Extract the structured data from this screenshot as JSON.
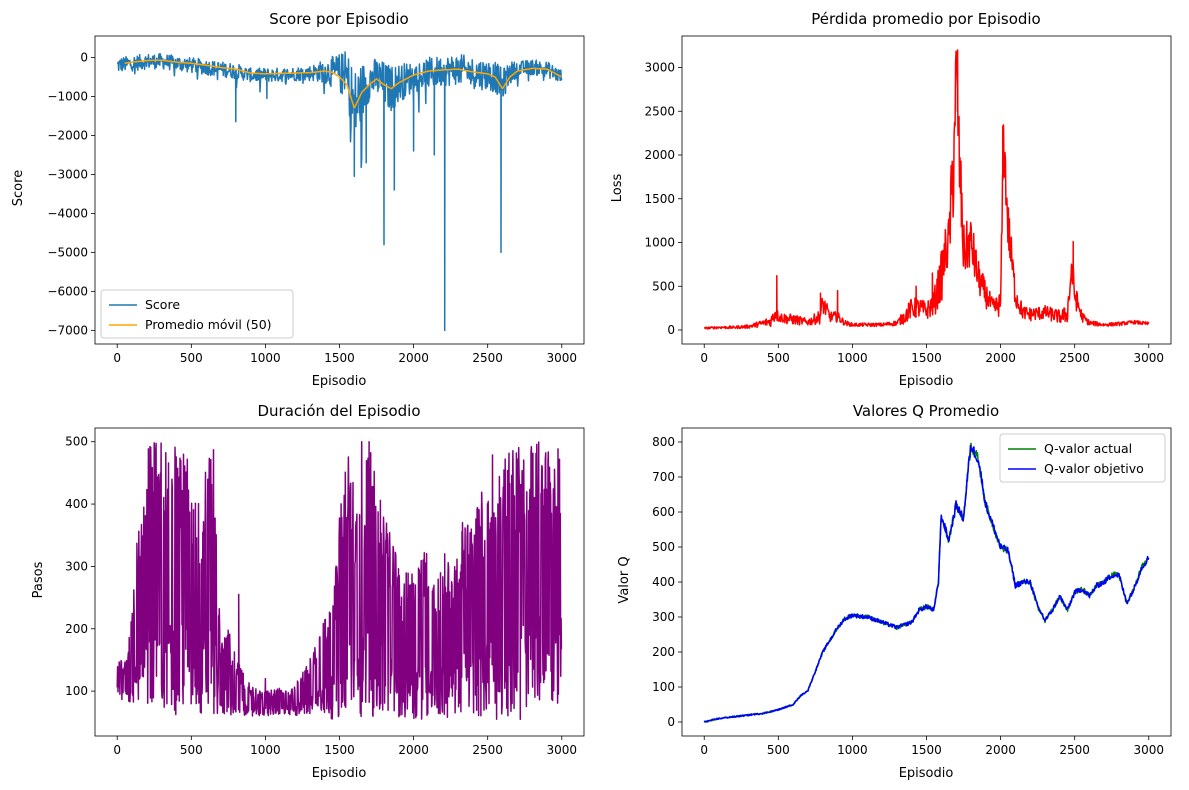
{
  "figure": {
    "background": "#ffffff"
  },
  "chart_data": [
    {
      "type": "line",
      "title": "Score por Episodio",
      "xlabel": "Episodio",
      "ylabel": "Score",
      "xlim": [
        -150,
        3150
      ],
      "ylim": [
        -7350,
        550
      ],
      "xticks": [
        0,
        500,
        1000,
        1500,
        2000,
        2500,
        3000
      ],
      "yticks": [
        0,
        -1000,
        -2000,
        -3000,
        -4000,
        -5000,
        -6000,
        -7000
      ],
      "legend": "lower-left",
      "series": [
        {
          "name": "Score",
          "color": "#1f77b4",
          "style": "noisy",
          "x": [
            0,
            100,
            200,
            300,
            400,
            500,
            600,
            700,
            800,
            900,
            1000,
            1100,
            1200,
            1300,
            1400,
            1500,
            1550,
            1600,
            1650,
            1700,
            1750,
            1800,
            1850,
            1900,
            2000,
            2100,
            2200,
            2300,
            2400,
            2500,
            2550,
            2600,
            2650,
            2700,
            2800,
            2900,
            3000
          ],
          "y": [
            -200,
            -150,
            -100,
            -100,
            -150,
            -200,
            -250,
            -300,
            -350,
            -450,
            -450,
            -450,
            -420,
            -400,
            -350,
            -400,
            -500,
            -1300,
            -900,
            -600,
            -500,
            -700,
            -800,
            -650,
            -500,
            -400,
            -350,
            -300,
            -400,
            -450,
            -500,
            -700,
            -400,
            -300,
            -250,
            -300,
            -500
          ],
          "amp": [
            200,
            200,
            200,
            200,
            200,
            200,
            200,
            200,
            200,
            180,
            180,
            180,
            180,
            200,
            300,
            500,
            700,
            1000,
            800,
            500,
            500,
            600,
            600,
            500,
            400,
            400,
            400,
            400,
            400,
            400,
            400,
            400,
            300,
            200,
            200,
            200,
            200
          ],
          "spikes": [
            [
              800,
              -1650
            ],
            [
              1600,
              -3050
            ],
            [
              1800,
              -4800
            ],
            [
              1870,
              -3400
            ],
            [
              2000,
              -2400
            ],
            [
              2210,
              -7000
            ],
            [
              2590,
              -5000
            ],
            [
              1010,
              -1050
            ],
            [
              1680,
              -2700
            ],
            [
              2140,
              -2500
            ]
          ]
        },
        {
          "name": "Promedio móvil (50)",
          "color": "#ffa500",
          "x": [
            50,
            100,
            200,
            300,
            400,
            500,
            600,
            700,
            800,
            900,
            1000,
            1100,
            1200,
            1300,
            1400,
            1450,
            1500,
            1550,
            1600,
            1650,
            1700,
            1750,
            1800,
            1850,
            1900,
            1950,
            2000,
            2050,
            2100,
            2200,
            2300,
            2400,
            2500,
            2550,
            2600,
            2650,
            2700,
            2800,
            2900,
            3000
          ],
          "y": [
            -150,
            -120,
            -80,
            -70,
            -120,
            -150,
            -200,
            -260,
            -300,
            -400,
            -420,
            -410,
            -400,
            -390,
            -350,
            -380,
            -500,
            -700,
            -1300,
            -900,
            -700,
            -550,
            -700,
            -800,
            -650,
            -550,
            -450,
            -400,
            -350,
            -320,
            -300,
            -370,
            -420,
            -500,
            -800,
            -500,
            -350,
            -280,
            -300,
            -500
          ]
        }
      ]
    },
    {
      "type": "line",
      "title": "Pérdida promedio por Episodio",
      "xlabel": "Episodio",
      "ylabel": "Loss",
      "xlim": [
        -150,
        3150
      ],
      "ylim": [
        -160,
        3360
      ],
      "xticks": [
        0,
        500,
        1000,
        1500,
        2000,
        2500,
        3000
      ],
      "yticks": [
        0,
        500,
        1000,
        1500,
        2000,
        2500,
        3000
      ],
      "series": [
        {
          "name": "Loss",
          "color": "#ff0000",
          "style": "noisy",
          "x": [
            0,
            100,
            200,
            300,
            400,
            450,
            480,
            500,
            550,
            600,
            700,
            780,
            800,
            850,
            900,
            950,
            1000,
            1100,
            1200,
            1300,
            1350,
            1400,
            1450,
            1500,
            1550,
            1600,
            1630,
            1650,
            1680,
            1700,
            1720,
            1750,
            1800,
            1850,
            1900,
            1950,
            2000,
            2020,
            2050,
            2100,
            2150,
            2200,
            2300,
            2400,
            2450,
            2480,
            2500,
            2550,
            2600,
            2700,
            2800,
            2900,
            3000
          ],
          "y": [
            20,
            30,
            30,
            40,
            80,
            100,
            200,
            150,
            130,
            120,
            90,
            150,
            300,
            150,
            150,
            80,
            60,
            60,
            60,
            80,
            150,
            250,
            250,
            220,
            300,
            600,
            900,
            1000,
            1800,
            3000,
            2000,
            900,
            1000,
            600,
            400,
            250,
            300,
            2200,
            1200,
            400,
            200,
            180,
            200,
            150,
            180,
            700,
            400,
            150,
            80,
            60,
            70,
            90,
            70
          ],
          "amp": [
            10,
            15,
            15,
            20,
            40,
            60,
            100,
            60,
            60,
            60,
            40,
            80,
            120,
            60,
            60,
            30,
            20,
            20,
            20,
            30,
            80,
            120,
            120,
            100,
            150,
            300,
            300,
            300,
            600,
            400,
            500,
            300,
            300,
            200,
            150,
            100,
            150,
            300,
            300,
            150,
            80,
            80,
            80,
            80,
            100,
            250,
            150,
            60,
            30,
            20,
            20,
            20,
            20
          ],
          "spikes": [
            [
              490,
              620
            ],
            [
              785,
              420
            ],
            [
              900,
              450
            ],
            [
              1430,
              500
            ],
            [
              1710,
              3200
            ],
            [
              2015,
              2330
            ],
            [
              2490,
              1010
            ],
            [
              1540,
              650
            ]
          ]
        }
      ]
    },
    {
      "type": "line",
      "title": "Duración del Episodio",
      "xlabel": "Episodio",
      "ylabel": "Pasos",
      "xlim": [
        -150,
        3150
      ],
      "ylim": [
        28,
        522
      ],
      "xticks": [
        0,
        500,
        1000,
        1500,
        2000,
        2500,
        3000
      ],
      "yticks": [
        100,
        200,
        300,
        400,
        500
      ],
      "series": [
        {
          "name": "Pasos",
          "color": "#800080",
          "style": "band",
          "x": [
            0,
            50,
            100,
            150,
            200,
            250,
            300,
            350,
            400,
            450,
            500,
            550,
            600,
            650,
            700,
            750,
            800,
            850,
            900,
            1000,
            1100,
            1200,
            1300,
            1400,
            1450,
            1500,
            1550,
            1600,
            1650,
            1700,
            1750,
            1800,
            1850,
            1900,
            1950,
            2000,
            2050,
            2100,
            2150,
            2200,
            2250,
            2300,
            2350,
            2400,
            2450,
            2500,
            2550,
            2600,
            2650,
            2700,
            2750,
            2800,
            2850,
            2900,
            2950,
            3000
          ],
          "lo": [
            90,
            80,
            80,
            75,
            70,
            60,
            60,
            60,
            60,
            60,
            60,
            60,
            60,
            60,
            60,
            60,
            60,
            60,
            60,
            60,
            60,
            60,
            60,
            60,
            55,
            55,
            55,
            55,
            55,
            55,
            55,
            55,
            55,
            55,
            55,
            55,
            55,
            55,
            55,
            55,
            55,
            60,
            60,
            60,
            60,
            60,
            60,
            60,
            60,
            70,
            70,
            75,
            80,
            80,
            80,
            80
          ],
          "hi": [
            150,
            150,
            220,
            400,
            500,
            500,
            500,
            500,
            500,
            500,
            450,
            400,
            500,
            500,
            200,
            200,
            160,
            130,
            110,
            100,
            105,
            110,
            150,
            220,
            250,
            380,
            500,
            430,
            420,
            500,
            440,
            400,
            360,
            300,
            290,
            300,
            330,
            320,
            280,
            300,
            320,
            340,
            370,
            380,
            420,
            450,
            500,
            500,
            500,
            500,
            500,
            500,
            500,
            500,
            500,
            500
          ],
          "spikes": [
            [
              820,
              255
            ],
            [
              2210,
              320
            ],
            [
              2330,
              370
            ],
            [
              1650,
              500
            ],
            [
              1700,
              500
            ],
            [
              1000,
              120
            ],
            [
              2560,
              55
            ],
            [
              2720,
              55
            ]
          ]
        }
      ]
    },
    {
      "type": "line",
      "title": "Valores Q Promedio",
      "xlabel": "Episodio",
      "ylabel": "Valor Q",
      "xlim": [
        -150,
        3150
      ],
      "ylim": [
        -40,
        840
      ],
      "xticks": [
        0,
        500,
        1000,
        1500,
        2000,
        2500,
        3000
      ],
      "yticks": [
        0,
        100,
        200,
        300,
        400,
        500,
        600,
        700,
        800
      ],
      "legend": "upper-right",
      "series": [
        {
          "name": "Q-valor actual",
          "color": "#008000",
          "x": [
            0,
            100,
            200,
            300,
            400,
            500,
            600,
            650,
            700,
            800,
            900,
            950,
            1000,
            1100,
            1200,
            1300,
            1400,
            1450,
            1500,
            1550,
            1580,
            1600,
            1650,
            1700,
            1750,
            1780,
            1800,
            1850,
            1900,
            1950,
            2000,
            2050,
            2100,
            2150,
            2200,
            2250,
            2300,
            2350,
            2400,
            2450,
            2500,
            2550,
            2600,
            2650,
            2700,
            2750,
            2800,
            2850,
            2900,
            2950,
            3000
          ],
          "y": [
            0,
            10,
            15,
            20,
            25,
            35,
            50,
            75,
            90,
            200,
            270,
            295,
            305,
            300,
            285,
            270,
            285,
            320,
            330,
            320,
            400,
            590,
            520,
            620,
            580,
            720,
            790,
            750,
            620,
            560,
            500,
            490,
            390,
            400,
            400,
            330,
            290,
            320,
            360,
            320,
            370,
            380,
            360,
            390,
            400,
            420,
            420,
            340,
            380,
            440,
            470
          ]
        },
        {
          "name": "Q-valor objetivo",
          "color": "#0000ff",
          "x": [
            0,
            100,
            200,
            300,
            400,
            500,
            600,
            650,
            700,
            800,
            900,
            950,
            1000,
            1100,
            1200,
            1300,
            1400,
            1450,
            1500,
            1550,
            1580,
            1600,
            1650,
            1700,
            1750,
            1780,
            1800,
            1850,
            1900,
            1950,
            2000,
            2050,
            2100,
            2150,
            2200,
            2250,
            2300,
            2350,
            2400,
            2450,
            2500,
            2550,
            2600,
            2650,
            2700,
            2750,
            2800,
            2850,
            2900,
            2950,
            3000
          ],
          "y": [
            0,
            10,
            15,
            20,
            25,
            35,
            50,
            75,
            90,
            200,
            270,
            295,
            305,
            300,
            285,
            270,
            285,
            320,
            330,
            320,
            400,
            590,
            520,
            620,
            580,
            720,
            790,
            750,
            620,
            560,
            500,
            490,
            390,
            400,
            400,
            330,
            290,
            320,
            360,
            320,
            370,
            380,
            360,
            390,
            400,
            420,
            420,
            340,
            380,
            440,
            470
          ]
        }
      ]
    }
  ]
}
